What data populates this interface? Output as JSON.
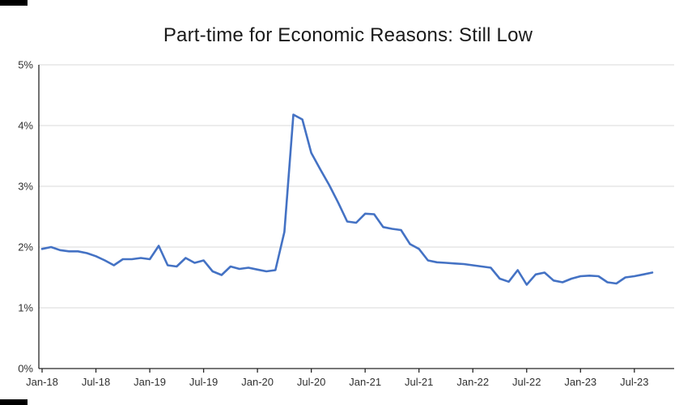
{
  "chart_data": {
    "type": "line",
    "title": "Part-time for Economic Reasons: Still Low",
    "x": [
      "Jan-18",
      "Feb-18",
      "Mar-18",
      "Apr-18",
      "May-18",
      "Jun-18",
      "Jul-18",
      "Aug-18",
      "Sep-18",
      "Oct-18",
      "Nov-18",
      "Dec-18",
      "Jan-19",
      "Feb-19",
      "Mar-19",
      "Apr-19",
      "May-19",
      "Jun-19",
      "Jul-19",
      "Aug-19",
      "Sep-19",
      "Oct-19",
      "Nov-19",
      "Dec-19",
      "Jan-20",
      "Feb-20",
      "Mar-20",
      "Apr-20",
      "May-20",
      "Jun-20",
      "Jul-20",
      "Aug-20",
      "Sep-20",
      "Oct-20",
      "Nov-20",
      "Dec-20",
      "Jan-21",
      "Feb-21",
      "Mar-21",
      "Apr-21",
      "May-21",
      "Jun-21",
      "Jul-21",
      "Aug-21",
      "Sep-21",
      "Oct-21",
      "Nov-21",
      "Dec-21",
      "Jan-22",
      "Feb-22",
      "Mar-22",
      "Apr-22",
      "May-22",
      "Jun-22",
      "Jul-22",
      "Aug-22",
      "Sep-22",
      "Oct-22",
      "Nov-22",
      "Dec-22",
      "Jan-23",
      "Feb-23",
      "Mar-23",
      "Apr-23",
      "May-23",
      "Jun-23",
      "Jul-23",
      "Aug-23",
      "Sep-23"
    ],
    "values": [
      1.97,
      2.0,
      1.95,
      1.93,
      1.93,
      1.9,
      1.85,
      1.78,
      1.7,
      1.8,
      1.8,
      1.82,
      1.8,
      2.02,
      1.7,
      1.68,
      1.82,
      1.74,
      1.78,
      1.6,
      1.54,
      1.68,
      1.64,
      1.66,
      1.63,
      1.6,
      1.62,
      2.25,
      4.18,
      4.1,
      3.55,
      3.28,
      3.02,
      2.73,
      2.42,
      2.4,
      2.55,
      2.54,
      2.33,
      2.3,
      2.28,
      2.05,
      1.97,
      1.78,
      1.75,
      1.74,
      1.73,
      1.72,
      1.7,
      1.68,
      1.66,
      1.48,
      1.43,
      1.62,
      1.38,
      1.55,
      1.58,
      1.45,
      1.42,
      1.48,
      1.52,
      1.53,
      1.52,
      1.42,
      1.4,
      1.5,
      1.52,
      1.55,
      1.58
    ],
    "x_tick_labels": [
      "Jan-18",
      "Jul-18",
      "Jan-19",
      "Jul-19",
      "Jan-20",
      "Jul-20",
      "Jan-21",
      "Jul-21",
      "Jan-22",
      "Jul-22",
      "Jan-23",
      "Jul-23"
    ],
    "x_tick_every": 6,
    "y_tick_labels": [
      "0%",
      "1%",
      "2%",
      "3%",
      "4%",
      "5%"
    ],
    "ylim": [
      0,
      5
    ],
    "xlabel": "",
    "ylabel": "",
    "grid": "horizontal",
    "legend": "none",
    "colors": {
      "line": "#4472C4",
      "grid": "#d9d9d9",
      "axis": "#262626",
      "label": "#303030",
      "title": "#1a1a1a"
    }
  }
}
